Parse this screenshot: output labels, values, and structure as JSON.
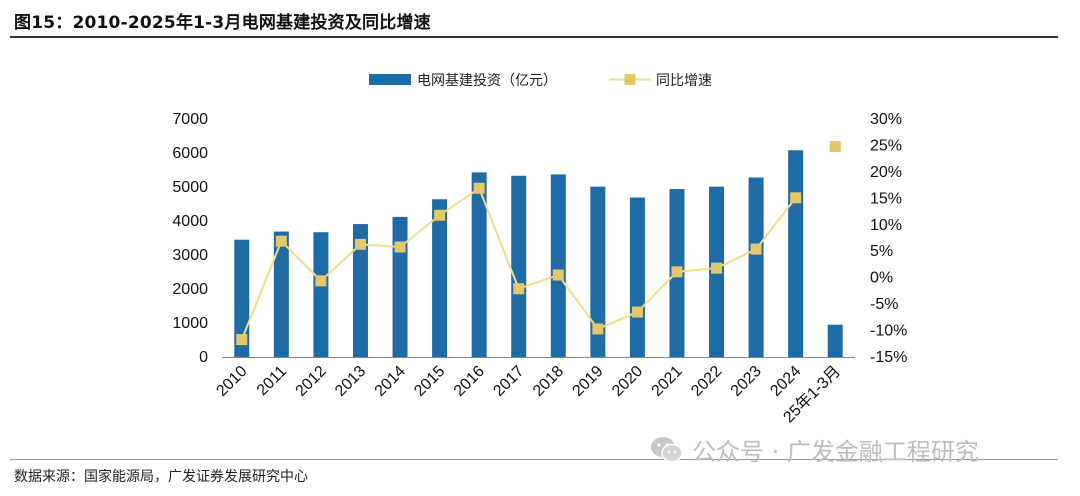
{
  "figure": {
    "title": "图15：2010-2025年1-3月电网基建投资及同比增速",
    "source": "数据来源：国家能源局，广发证券发展研究中心",
    "watermark": "公众号 · 广发金融工程研究"
  },
  "chart_data": {
    "type": "bar",
    "categories": [
      "2010",
      "2011",
      "2012",
      "2013",
      "2014",
      "2015",
      "2016",
      "2017",
      "2018",
      "2019",
      "2020",
      "2021",
      "2022",
      "2023",
      "2024",
      "25年1-3月"
    ],
    "series": [
      {
        "name": "电网基建投资（亿元）",
        "kind": "bar",
        "axis": "left",
        "color": "#1F6BA5",
        "values": [
          3450,
          3690,
          3670,
          3910,
          4120,
          4640,
          5430,
          5330,
          5370,
          5010,
          4690,
          4940,
          5010,
          5280,
          6080,
          950
        ]
      },
      {
        "name": "同比增速",
        "kind": "line",
        "axis": "right",
        "color": "#F2DD8A",
        "marker_color": "#E3C76A",
        "values": [
          -11.7,
          6.9,
          -0.6,
          6.3,
          5.8,
          11.8,
          16.9,
          -2.1,
          0.5,
          -9.7,
          -6.5,
          1.1,
          1.8,
          5.4,
          15.1,
          24.8
        ],
        "connected_points": 15
      }
    ],
    "y_left": {
      "min": 0,
      "max": 7000,
      "ticks": [
        0,
        1000,
        2000,
        3000,
        4000,
        5000,
        6000,
        7000
      ]
    },
    "y_right": {
      "min": -15,
      "max": 30,
      "ticks": [
        -15,
        -10,
        -5,
        0,
        5,
        10,
        15,
        20,
        25,
        30
      ],
      "tick_labels": [
        "-15%",
        "-10%",
        "-5%",
        "0%",
        "5%",
        "10%",
        "15%",
        "20%",
        "25%",
        "30%"
      ]
    },
    "legend_position": "top-center",
    "grid": false
  }
}
